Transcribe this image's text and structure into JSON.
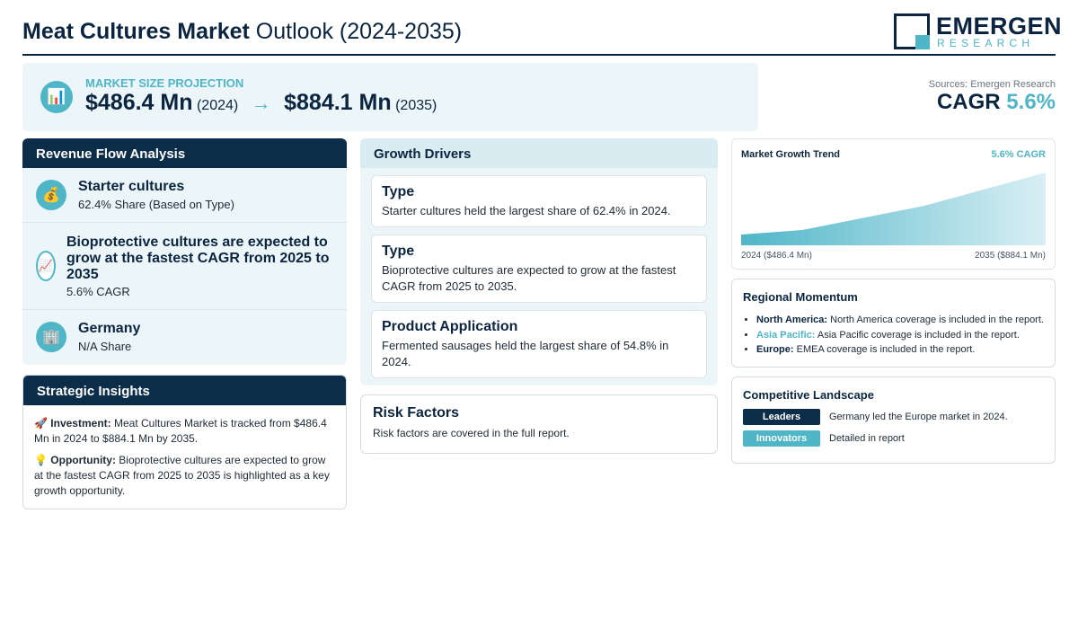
{
  "header": {
    "title_bold": "Meat Cultures Market",
    "title_rest": " Outlook (2024-2035)",
    "logo_name": "EMERGEN",
    "logo_sub": "RESEARCH"
  },
  "projection": {
    "label": "MARKET SIZE PROJECTION",
    "icon": "bar-chart-icon",
    "start_value": "$486.4 Mn",
    "start_year": "(2024)",
    "arrow": "→",
    "end_value": "$884.1 Mn",
    "end_year": "(2035)"
  },
  "sources": "Sources: Emergen Research",
  "cagr": {
    "label": "CAGR",
    "value": "5.6%"
  },
  "revenue_flow": {
    "title": "Revenue Flow Analysis",
    "items": [
      {
        "icon": "money-bag-icon",
        "glyph": "💰",
        "title": "Starter cultures",
        "sub": "62.4% Share (Based on Type)"
      },
      {
        "icon": "trending-up-icon",
        "glyph": "📈",
        "title": "Bioprotective cultures are expected to grow at the fastest CAGR from 2025 to 2035",
        "sub": "5.6% CAGR"
      },
      {
        "icon": "building-icon",
        "glyph": "🏢",
        "title": "Germany",
        "sub": "N/A Share"
      }
    ]
  },
  "insights": {
    "title": "Strategic Insights",
    "investment_glyph": "🚀",
    "investment_label": "Investment:",
    "investment_text": " Meat Cultures Market is tracked from $486.4 Mn in 2024 to $884.1 Mn by 2035.",
    "opportunity_glyph": "💡",
    "opportunity_label": "Opportunity:",
    "opportunity_text": " Bioprotective cultures are expected to grow at the fastest CAGR from 2025 to 2035 is highlighted as a key growth opportunity."
  },
  "drivers": {
    "title": "Growth Drivers",
    "cards": [
      {
        "title": "Type",
        "text": "Starter cultures held the largest share of 62.4% in 2024."
      },
      {
        "title": "Type",
        "text": "Bioprotective cultures are expected to grow at the fastest CAGR from 2025 to 2035."
      },
      {
        "title": "Product Application",
        "text": "Fermented sausages held the largest share of 54.8% in 2024."
      }
    ]
  },
  "risk": {
    "title": "Risk Factors",
    "text": "Risk factors are covered in the full report."
  },
  "trend": {
    "title": "Market Growth Trend",
    "cagr_label": "5.6% CAGR",
    "start_label": "2024 ($486.4 Mn)",
    "end_label": "2035 ($884.1 Mn)"
  },
  "regional": {
    "title": "Regional Momentum",
    "items": [
      {
        "name": "North America:",
        "text": " North America coverage is included in the report."
      },
      {
        "name": "Asia Pacific:",
        "text": " Asia Pacific coverage is included in the report."
      },
      {
        "name": "Europe:",
        "text": " EMEA coverage is included in the report."
      }
    ]
  },
  "competitive": {
    "title": "Competitive Landscape",
    "rows": [
      {
        "badge": "Leaders",
        "text": "Germany led the Europe market in 2024.",
        "color": "#0b2d4a"
      },
      {
        "badge": "Innovators",
        "text": "Detailed in report",
        "color": "#4fb6c8"
      }
    ]
  },
  "colors": {
    "navy": "#0b2540",
    "accent": "#4fb6c8",
    "panel": "#ecf5f7"
  }
}
